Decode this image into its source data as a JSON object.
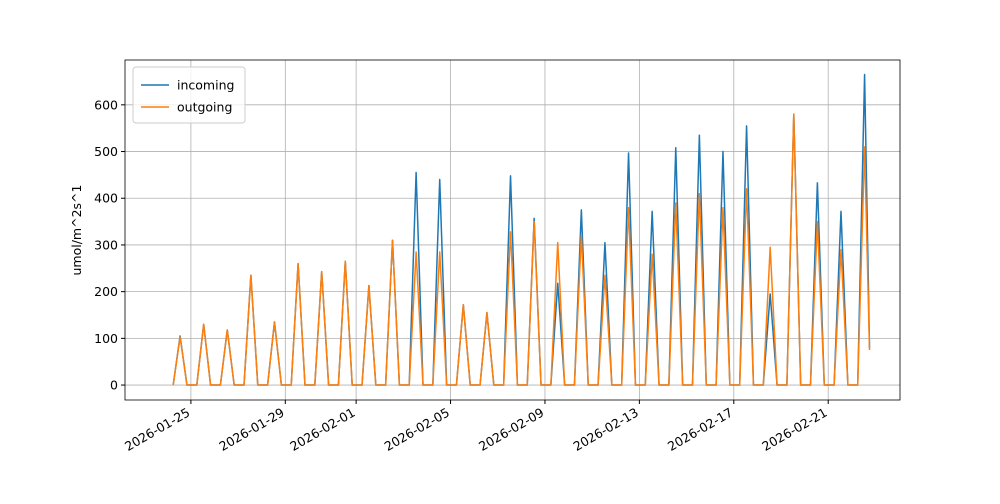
{
  "chart_data": {
    "type": "line",
    "y_label": "umol/m^2s^1",
    "x": [
      "2026-01-24 06:00",
      "2026-01-24 13:00",
      "2026-01-24 20:00",
      "2026-01-25 06:00",
      "2026-01-25 13:00",
      "2026-01-25 20:00",
      "2026-01-26 06:00",
      "2026-01-26 13:00",
      "2026-01-26 20:00",
      "2026-01-27 06:00",
      "2026-01-27 13:00",
      "2026-01-27 20:00",
      "2026-01-28 06:00",
      "2026-01-28 13:00",
      "2026-01-28 20:00",
      "2026-01-29 06:00",
      "2026-01-29 13:00",
      "2026-01-29 20:00",
      "2026-01-30 06:00",
      "2026-01-30 13:00",
      "2026-01-30 20:00",
      "2026-01-31 06:00",
      "2026-01-31 13:00",
      "2026-01-31 20:00",
      "2026-02-01 06:00",
      "2026-02-01 13:00",
      "2026-02-01 20:00",
      "2026-02-02 06:00",
      "2026-02-02 13:00",
      "2026-02-02 20:00",
      "2026-02-03 06:00",
      "2026-02-03 13:00",
      "2026-02-03 20:00",
      "2026-02-04 06:00",
      "2026-02-04 13:00",
      "2026-02-04 20:00",
      "2026-02-05 06:00",
      "2026-02-05 13:00",
      "2026-02-05 20:00",
      "2026-02-06 06:00",
      "2026-02-06 13:00",
      "2026-02-06 20:00",
      "2026-02-07 06:00",
      "2026-02-07 13:00",
      "2026-02-07 20:00",
      "2026-02-08 06:00",
      "2026-02-08 13:00",
      "2026-02-08 20:00",
      "2026-02-09 06:00",
      "2026-02-09 13:00",
      "2026-02-09 20:00",
      "2026-02-10 06:00",
      "2026-02-10 13:00",
      "2026-02-10 20:00",
      "2026-02-11 06:00",
      "2026-02-11 13:00",
      "2026-02-11 20:00",
      "2026-02-12 06:00",
      "2026-02-12 13:00",
      "2026-02-12 20:00",
      "2026-02-13 06:00",
      "2026-02-13 13:00",
      "2026-02-13 20:00",
      "2026-02-14 06:00",
      "2026-02-14 13:00",
      "2026-02-14 20:00",
      "2026-02-15 06:00",
      "2026-02-15 13:00",
      "2026-02-15 20:00",
      "2026-02-16 06:00",
      "2026-02-16 13:00",
      "2026-02-16 20:00",
      "2026-02-17 06:00",
      "2026-02-17 13:00",
      "2026-02-17 20:00",
      "2026-02-18 06:00",
      "2026-02-18 13:00",
      "2026-02-18 20:00",
      "2026-02-19 06:00",
      "2026-02-19 13:00",
      "2026-02-19 20:00",
      "2026-02-20 06:00",
      "2026-02-20 13:00",
      "2026-02-20 20:00",
      "2026-02-21 06:00",
      "2026-02-21 13:00",
      "2026-02-21 20:00",
      "2026-02-22 06:00",
      "2026-02-22 13:00",
      "2026-02-22 18:00"
    ],
    "series": [
      {
        "name": "incoming",
        "color": "#1f77b4",
        "values": [
          0,
          105,
          0,
          0,
          130,
          0,
          0,
          118,
          0,
          0,
          235,
          0,
          0,
          135,
          0,
          0,
          260,
          0,
          0,
          243,
          0,
          0,
          265,
          0,
          0,
          213,
          0,
          0,
          310,
          0,
          0,
          455,
          0,
          0,
          440,
          0,
          0,
          172,
          0,
          0,
          155,
          0,
          0,
          448,
          0,
          0,
          357,
          0,
          0,
          218,
          0,
          0,
          375,
          0,
          0,
          305,
          0,
          0,
          497,
          0,
          0,
          372,
          0,
          0,
          508,
          0,
          0,
          535,
          0,
          0,
          500,
          0,
          0,
          555,
          0,
          0,
          195,
          0,
          0,
          580,
          0,
          0,
          433,
          0,
          0,
          372,
          0,
          0,
          665,
          80
        ]
      },
      {
        "name": "outgoing",
        "color": "#ff7f0e",
        "values": [
          0,
          103,
          0,
          0,
          130,
          0,
          0,
          118,
          0,
          0,
          235,
          0,
          0,
          135,
          0,
          0,
          260,
          0,
          0,
          243,
          0,
          0,
          265,
          0,
          0,
          213,
          0,
          0,
          310,
          0,
          0,
          285,
          0,
          0,
          285,
          0,
          0,
          172,
          0,
          0,
          155,
          0,
          0,
          328,
          0,
          0,
          350,
          0,
          0,
          305,
          0,
          0,
          320,
          0,
          0,
          235,
          0,
          0,
          380,
          0,
          0,
          280,
          0,
          0,
          390,
          0,
          0,
          410,
          0,
          0,
          380,
          0,
          0,
          420,
          0,
          0,
          295,
          0,
          0,
          580,
          0,
          0,
          350,
          0,
          0,
          290,
          0,
          0,
          510,
          75
        ]
      }
    ],
    "xlim": [
      "2026-01-22 05:00",
      "2026-02-24 01:00"
    ],
    "xticks": [
      "2026-01-25",
      "2026-01-29",
      "2026-02-01",
      "2026-02-05",
      "2026-02-09",
      "2026-02-13",
      "2026-02-17",
      "2026-02-21"
    ],
    "ylim": [
      -32,
      696
    ],
    "yticks": [
      0,
      100,
      200,
      300,
      400,
      500,
      600
    ],
    "grid": true,
    "legend": "upper left"
  }
}
